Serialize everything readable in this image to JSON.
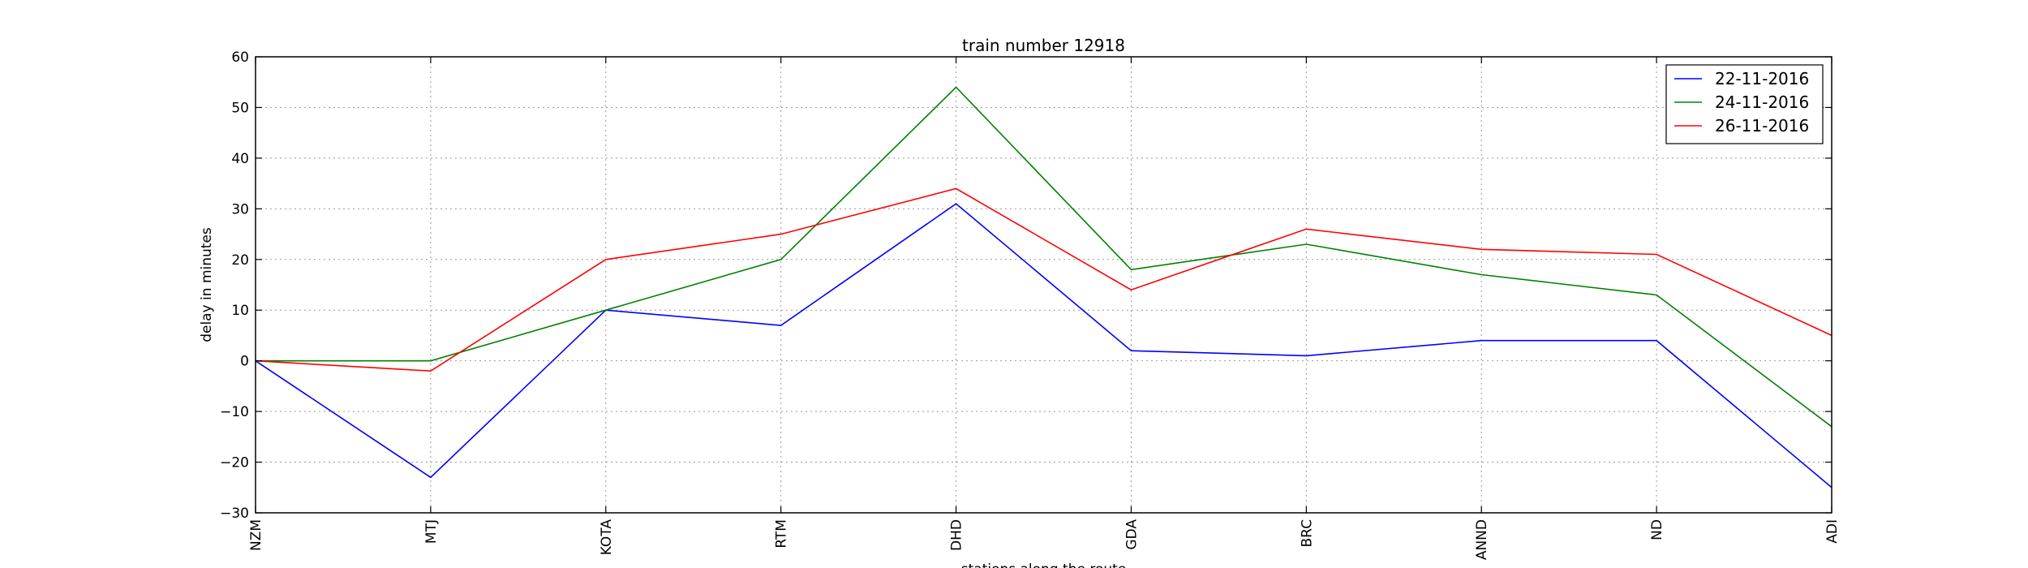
{
  "chart_data": {
    "type": "line",
    "title": "train number 12918",
    "xlabel": "stations along the route",
    "ylabel": "delay in minutes",
    "categories": [
      "NZM",
      "MTJ",
      "KOTA",
      "RTM",
      "DHD",
      "GDA",
      "BRC",
      "ANND",
      "ND",
      "ADI"
    ],
    "ylim": [
      -30,
      60
    ],
    "yticks": [
      -30,
      -20,
      -10,
      0,
      10,
      20,
      30,
      40,
      50,
      60
    ],
    "grid": true,
    "legend_position": "top-right",
    "series": [
      {
        "name": "22-11-2016",
        "color": "#0000ff",
        "values": [
          0,
          -23,
          10,
          7,
          31,
          2,
          1,
          4,
          4,
          -25
        ]
      },
      {
        "name": "24-11-2016",
        "color": "#008000",
        "values": [
          0,
          0,
          10,
          20,
          54,
          18,
          23,
          17,
          13,
          -13
        ]
      },
      {
        "name": "26-11-2016",
        "color": "#ff0000",
        "values": [
          0,
          -2,
          20,
          25,
          34,
          14,
          26,
          22,
          21,
          5
        ]
      }
    ]
  }
}
